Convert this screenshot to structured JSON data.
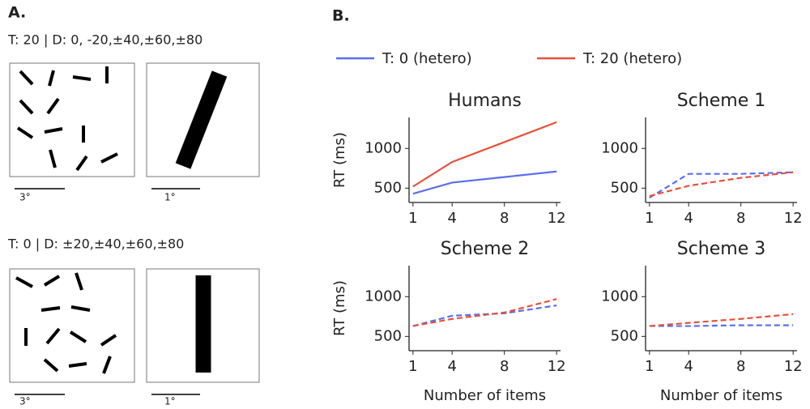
{
  "panel_a": {
    "label": "A.",
    "top_condition": "T: 20 | D: 0, -20,±40,±60,±80",
    "bottom_condition": "T: 0 | D: ±20,±40,±60,±80",
    "scale_wide": "3°",
    "scale_zoom": "1°"
  },
  "panel_b": {
    "label": "B."
  },
  "chart_data": [
    {
      "type": "line",
      "title": "Humans",
      "ylabel": "RT (ms)",
      "linestyle": "solid",
      "x": [
        1,
        4,
        8,
        12
      ],
      "xlim": [
        0.7,
        12.3
      ],
      "xticks": [
        1,
        4,
        8,
        12
      ],
      "ylim": [
        320,
        1390
      ],
      "yticks": [
        500,
        1000
      ],
      "series": [
        {
          "name": "T: 0 (hetero)",
          "color": "#5a6ff0",
          "values": [
            430,
            570,
            640,
            710
          ]
        },
        {
          "name": "T: 20 (hetero)",
          "color": "#e8503a",
          "values": [
            520,
            830,
            1080,
            1330
          ]
        }
      ]
    },
    {
      "type": "line",
      "title": "Scheme 1",
      "linestyle": "dashed",
      "x": [
        1,
        4,
        8,
        12
      ],
      "xlim": [
        0.7,
        12.3
      ],
      "xticks": [
        1,
        4,
        8,
        12
      ],
      "ylim": [
        320,
        1390
      ],
      "yticks": [
        500,
        1000
      ],
      "series": [
        {
          "name": "T: 0 (hetero)",
          "color": "#5a6ff0",
          "values": [
            380,
            680,
            680,
            700
          ]
        },
        {
          "name": "T: 20 (hetero)",
          "color": "#e8503a",
          "values": [
            400,
            530,
            630,
            700
          ]
        }
      ]
    },
    {
      "type": "line",
      "title": "Scheme 2",
      "ylabel": "RT (ms)",
      "xlabel": "Number of items",
      "linestyle": "dashed",
      "x": [
        1,
        4,
        8,
        12
      ],
      "xlim": [
        0.7,
        12.3
      ],
      "xticks": [
        1,
        4,
        8,
        12
      ],
      "ylim": [
        320,
        1390
      ],
      "yticks": [
        500,
        1000
      ],
      "series": [
        {
          "name": "T: 0 (hetero)",
          "color": "#5a6ff0",
          "values": [
            630,
            760,
            790,
            890
          ]
        },
        {
          "name": "T: 20 (hetero)",
          "color": "#e8503a",
          "values": [
            630,
            720,
            800,
            970
          ]
        }
      ]
    },
    {
      "type": "line",
      "title": "Scheme 3",
      "xlabel": "Number of items",
      "linestyle": "dashed",
      "x": [
        1,
        4,
        8,
        12
      ],
      "xlim": [
        0.7,
        12.3
      ],
      "xticks": [
        1,
        4,
        8,
        12
      ],
      "ylim": [
        320,
        1390
      ],
      "yticks": [
        500,
        1000
      ],
      "series": [
        {
          "name": "T: 0 (hetero)",
          "color": "#5a6ff0",
          "values": [
            630,
            630,
            640,
            640
          ]
        },
        {
          "name": "T: 20 (hetero)",
          "color": "#e8503a",
          "values": [
            630,
            670,
            720,
            780
          ]
        }
      ]
    }
  ]
}
